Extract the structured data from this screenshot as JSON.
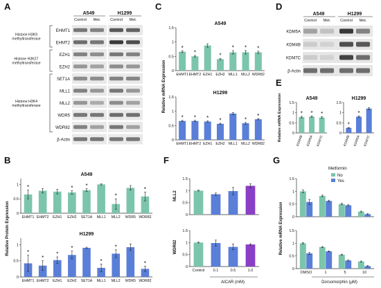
{
  "colors": {
    "teal": "#7cc5ad",
    "blue": "#5a7fd8",
    "purple": "#8a3fc7",
    "star": "#1a1a1a",
    "axis": "#333333"
  },
  "panels": {
    "A": {
      "letter": "A",
      "cell_lines": [
        "A549",
        "H1299"
      ],
      "conditions": [
        "Control",
        "Met.",
        "Control",
        "Met."
      ],
      "groups": [
        {
          "label": "Histone H3K9 methyltransferase",
          "proteins": [
            "EHMT1",
            "EHMT2"
          ]
        },
        {
          "label": "Histone H3K27 methyltransferase",
          "proteins": [
            "EZH1",
            "EZH2"
          ]
        },
        {
          "label": "Histone H3K4 methyltransferase",
          "proteins": [
            "SET1A",
            "MLL1",
            "MLL2",
            "WDR5",
            "WDR82"
          ]
        }
      ],
      "loading": "β-Actin",
      "band_intensity": [
        [
          0.55,
          0.5,
          0.7,
          0.65
        ],
        [
          0.6,
          0.55,
          0.85,
          0.75
        ],
        [
          0.5,
          0.45,
          0.55,
          0.5
        ],
        [
          0.4,
          0.35,
          0.45,
          0.4
        ],
        [
          0.45,
          0.45,
          0.5,
          0.48
        ],
        [
          0.5,
          0.4,
          0.55,
          0.4
        ],
        [
          0.4,
          0.3,
          0.45,
          0.35
        ],
        [
          0.55,
          0.55,
          0.6,
          0.58
        ],
        [
          0.5,
          0.35,
          0.55,
          0.35
        ],
        [
          0.55,
          0.55,
          0.55,
          0.55
        ]
      ]
    },
    "B": {
      "letter": "B",
      "ylabel": "Relative Protein Expression",
      "charts": [
        {
          "title": "A549",
          "categories": [
            "EHMT1",
            "EHMT2",
            "EZH1",
            "EZH2",
            "SET1A",
            "MLL1",
            "MLL2",
            "WDR5",
            "WDR82"
          ],
          "values": [
            0.65,
            0.78,
            0.75,
            0.72,
            0.8,
            1.0,
            0.32,
            0.88,
            0.58
          ],
          "errors": [
            0.15,
            0.08,
            0.08,
            0.06,
            0.05,
            0.02,
            0.18,
            0.08,
            0.15
          ],
          "stars": [
            true,
            false,
            false,
            true,
            true,
            false,
            true,
            false,
            true
          ],
          "ylim": [
            0,
            1.2
          ],
          "yticks": [
            0,
            0.5,
            1
          ]
        },
        {
          "title": "H1299",
          "categories": [
            "EHMT1",
            "EHMT2",
            "EZH1",
            "EZH2",
            "SET1A",
            "MLL1",
            "MLL2",
            "WDR5",
            "WDR82"
          ],
          "values": [
            0.42,
            0.35,
            0.52,
            0.68,
            0.9,
            0.28,
            0.72,
            0.92,
            0.25
          ],
          "errors": [
            0.25,
            0.15,
            0.1,
            0.12,
            0.02,
            0.12,
            0.12,
            0.1,
            0.08
          ],
          "stars": [
            true,
            true,
            true,
            true,
            false,
            true,
            true,
            false,
            true
          ],
          "ylim": [
            0,
            1.2
          ],
          "yticks": [
            0,
            0.5,
            1
          ]
        }
      ]
    },
    "C": {
      "letter": "C",
      "ylabel": "Relative mRNA Expression",
      "charts": [
        {
          "title": "A549",
          "categories": [
            "EHMT1",
            "EHMT2",
            "EZH1",
            "EZH2",
            "MLL1",
            "MLL2",
            "WDR82"
          ],
          "values": [
            0.66,
            0.5,
            0.88,
            0.4,
            0.64,
            0.64,
            0.64
          ],
          "errors": [
            0.03,
            0.03,
            0.06,
            0.03,
            0.06,
            0.06,
            0.04
          ],
          "stars": [
            true,
            true,
            false,
            true,
            true,
            true,
            true
          ],
          "ylim": [
            0,
            1.5
          ],
          "yticks": [
            0,
            0.5,
            1,
            1.5
          ]
        },
        {
          "title": "H1299",
          "categories": [
            "EHMT1",
            "EHMT2",
            "EZH1",
            "EZH2",
            "MLL1",
            "MLL2",
            "WDR82"
          ],
          "values": [
            0.66,
            0.66,
            0.64,
            0.56,
            0.92,
            0.58,
            0.72
          ],
          "errors": [
            0.02,
            0.02,
            0.02,
            0.02,
            0.04,
            0.03,
            0.02
          ],
          "stars": [
            true,
            true,
            true,
            true,
            false,
            true,
            true
          ],
          "ylim": [
            0,
            1.5
          ],
          "yticks": [
            0,
            0.5,
            1,
            1.5
          ]
        }
      ]
    },
    "D": {
      "letter": "D",
      "cell_lines": [
        "A549",
        "H1299"
      ],
      "conditions": [
        "Control",
        "Met.",
        "Control",
        "Met."
      ],
      "proteins": [
        "KDM5A",
        "KDM4B",
        "KDM7C",
        "β-Actin"
      ],
      "band_intensity": [
        [
          0.35,
          0.2,
          0.85,
          0.5
        ],
        [
          0.15,
          0.12,
          0.75,
          0.7
        ],
        [
          0.15,
          0.12,
          0.8,
          0.6
        ],
        [
          0.6,
          0.6,
          0.6,
          0.6
        ]
      ]
    },
    "E": {
      "letter": "E",
      "ylabel": "Relative mRNA Expression",
      "charts": [
        {
          "title": "A549",
          "categories": [
            "KDM4B",
            "KDM5A",
            "KDM7C"
          ],
          "values": [
            0.78,
            0.8,
            0.76
          ],
          "errors": [
            0.04,
            0.04,
            0.04
          ],
          "stars": [
            true,
            true,
            true
          ],
          "ylim": [
            0,
            1.5
          ],
          "yticks": [
            0,
            0.5,
            1,
            1.5
          ]
        },
        {
          "title": "H1299",
          "categories": [
            "KDM4B",
            "KDM5A",
            "KDM7C"
          ],
          "values": [
            0.25,
            0.8,
            1.2
          ],
          "errors": [
            0.02,
            0.04,
            0.05
          ],
          "stars": [
            true,
            true,
            false
          ],
          "ylim": [
            0,
            1.5
          ],
          "yticks": [
            0,
            0.5,
            1,
            1.5
          ]
        }
      ]
    },
    "F": {
      "letter": "F",
      "xlabel": "AICAR (mM)",
      "categories": [
        "Control",
        "0.1",
        "0.5",
        "1.0"
      ],
      "charts": [
        {
          "ylabel": "MLL2",
          "values": [
            1.0,
            0.85,
            0.98,
            1.2
          ],
          "errors": [
            0.02,
            0.05,
            0.15,
            0.08
          ],
          "ylim": [
            0,
            1.5
          ],
          "yticks": [
            0,
            0.5,
            1,
            1.5
          ]
        },
        {
          "ylabel": "WDR82",
          "values": [
            1.0,
            0.98,
            0.82,
            0.92
          ],
          "errors": [
            0.02,
            0.12,
            0.12,
            0.03
          ],
          "ylim": [
            0,
            1.5
          ],
          "yticks": [
            0,
            0.5,
            1,
            1.5
          ]
        }
      ],
      "bar_colors": [
        "#7cc5ad",
        "#5a7fd8",
        "#5a7fd8",
        "#8a3fc7"
      ]
    },
    "G": {
      "letter": "G",
      "ylabel": "Relative mRNA Expression",
      "legend_title": "Metformin",
      "legend": [
        "No",
        "Yes"
      ],
      "xlabel": "Dorsomorphin (μM)",
      "categories": [
        "DMSO",
        "1",
        "5",
        "10"
      ],
      "charts": [
        {
          "series": [
            {
              "name": "No",
              "values": [
                1.0,
                0.82,
                0.5,
                0.2
              ]
            },
            {
              "name": "Yes",
              "values": [
                0.58,
                0.62,
                0.45,
                0.1
              ]
            }
          ],
          "errors": [
            [
              0.06,
              0.03,
              0.03,
              0.02
            ],
            [
              0.1,
              0.03,
              0.02,
              0.02
            ]
          ],
          "ylim": [
            0,
            1.5
          ],
          "yticks": [
            0,
            0.5,
            1,
            1.5
          ]
        },
        {
          "series": [
            {
              "name": "No",
              "values": [
                1.0,
                0.85,
                0.55,
                0.28
              ]
            },
            {
              "name": "Yes",
              "values": [
                0.6,
                0.68,
                0.32,
                0.1
              ]
            }
          ],
          "errors": [
            [
              0.03,
              0.02,
              0.02,
              0.02
            ],
            [
              0.04,
              0.02,
              0.02,
              0.02
            ]
          ],
          "ylim": [
            0,
            1.5
          ],
          "yticks": [
            0,
            0.5,
            1,
            1.5
          ]
        }
      ]
    }
  },
  "chart_data": [
    {
      "type": "bar",
      "panel": "B",
      "title": "A549",
      "ylabel": "Relative Protein Expression",
      "categories": [
        "EHMT1",
        "EHMT2",
        "EZH1",
        "EZH2",
        "SET1A",
        "MLL1",
        "MLL2",
        "WDR5",
        "WDR82"
      ],
      "values": [
        0.65,
        0.78,
        0.75,
        0.72,
        0.8,
        1.0,
        0.32,
        0.88,
        0.58
      ],
      "ylim": [
        0,
        1.2
      ]
    },
    {
      "type": "bar",
      "panel": "B",
      "title": "H1299",
      "ylabel": "Relative Protein Expression",
      "categories": [
        "EHMT1",
        "EHMT2",
        "EZH1",
        "EZH2",
        "SET1A",
        "MLL1",
        "MLL2",
        "WDR5",
        "WDR82"
      ],
      "values": [
        0.42,
        0.35,
        0.52,
        0.68,
        0.9,
        0.28,
        0.72,
        0.92,
        0.25
      ],
      "ylim": [
        0,
        1.2
      ]
    },
    {
      "type": "bar",
      "panel": "C",
      "title": "A549",
      "ylabel": "Relative mRNA Expression",
      "categories": [
        "EHMT1",
        "EHMT2",
        "EZH1",
        "EZH2",
        "MLL1",
        "MLL2",
        "WDR82"
      ],
      "values": [
        0.66,
        0.5,
        0.88,
        0.4,
        0.64,
        0.64,
        0.64
      ],
      "ylim": [
        0,
        1.5
      ]
    },
    {
      "type": "bar",
      "panel": "C",
      "title": "H1299",
      "ylabel": "Relative mRNA Expression",
      "categories": [
        "EHMT1",
        "EHMT2",
        "EZH1",
        "EZH2",
        "MLL1",
        "MLL2",
        "WDR82"
      ],
      "values": [
        0.66,
        0.66,
        0.64,
        0.56,
        0.92,
        0.58,
        0.72
      ],
      "ylim": [
        0,
        1.5
      ]
    },
    {
      "type": "bar",
      "panel": "E",
      "title": "A549",
      "categories": [
        "KDM4B",
        "KDM5A",
        "KDM7C"
      ],
      "values": [
        0.78,
        0.8,
        0.76
      ],
      "ylim": [
        0,
        1.5
      ]
    },
    {
      "type": "bar",
      "panel": "E",
      "title": "H1299",
      "categories": [
        "KDM4B",
        "KDM5A",
        "KDM7C"
      ],
      "values": [
        0.25,
        0.8,
        1.2
      ],
      "ylim": [
        0,
        1.5
      ]
    },
    {
      "type": "bar",
      "panel": "F",
      "ylabel": "MLL2",
      "xlabel": "AICAR (mM)",
      "categories": [
        "Control",
        "0.1",
        "0.5",
        "1.0"
      ],
      "values": [
        1.0,
        0.85,
        0.98,
        1.2
      ],
      "ylim": [
        0,
        1.5
      ]
    },
    {
      "type": "bar",
      "panel": "F",
      "ylabel": "WDR82",
      "xlabel": "AICAR (mM)",
      "categories": [
        "Control",
        "0.1",
        "0.5",
        "1.0"
      ],
      "values": [
        1.0,
        0.98,
        0.82,
        0.92
      ],
      "ylim": [
        0,
        1.5
      ]
    },
    {
      "type": "bar",
      "panel": "G",
      "xlabel": "Dorsomorphin (μM)",
      "categories": [
        "DMSO",
        "1",
        "5",
        "10"
      ],
      "series": [
        {
          "name": "No",
          "values": [
            1.0,
            0.82,
            0.5,
            0.2
          ]
        },
        {
          "name": "Yes",
          "values": [
            0.58,
            0.62,
            0.45,
            0.1
          ]
        }
      ],
      "ylim": [
        0,
        1.5
      ]
    },
    {
      "type": "bar",
      "panel": "G",
      "xlabel": "Dorsomorphin (μM)",
      "categories": [
        "DMSO",
        "1",
        "5",
        "10"
      ],
      "series": [
        {
          "name": "No",
          "values": [
            1.0,
            0.85,
            0.55,
            0.28
          ]
        },
        {
          "name": "Yes",
          "values": [
            0.6,
            0.68,
            0.32,
            0.1
          ]
        }
      ],
      "ylim": [
        0,
        1.5
      ]
    }
  ]
}
